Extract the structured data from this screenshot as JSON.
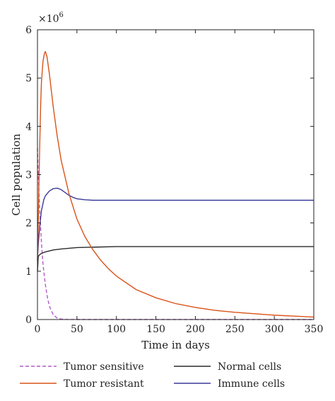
{
  "chart_data": {
    "type": "line",
    "xlabel": "Time in days",
    "ylabel": "Cell population",
    "y_multiplier_label": "×10",
    "y_multiplier_exponent": "6",
    "xlim": [
      0,
      350
    ],
    "ylim": [
      0,
      6
    ],
    "x_ticks": [
      0,
      50,
      100,
      150,
      200,
      250,
      300,
      350
    ],
    "y_ticks": [
      0,
      1,
      2,
      3,
      4,
      5,
      6
    ],
    "grid": false,
    "legend_position": "bottom",
    "series": [
      {
        "name": "Tumor sensitive",
        "color": "#b05cc8",
        "dash": "dashed",
        "x": [
          0,
          1,
          3,
          5,
          7,
          10,
          13,
          16,
          20,
          25,
          30,
          35,
          40,
          50,
          100,
          200,
          350
        ],
        "y": [
          3.55,
          3.0,
          2.2,
          1.6,
          1.15,
          0.72,
          0.42,
          0.24,
          0.1,
          0.03,
          0.01,
          0.003,
          0.001,
          0,
          0,
          0,
          0
        ]
      },
      {
        "name": "Tumor resistant",
        "color": "#d95319",
        "dash": "solid",
        "x": [
          0,
          1,
          2,
          3,
          4,
          5,
          7,
          9,
          10,
          12,
          15,
          20,
          25,
          30,
          40,
          50,
          60,
          70,
          80,
          90,
          100,
          125,
          150,
          175,
          200,
          225,
          250,
          275,
          300,
          325,
          350
        ],
        "y": [
          1.2,
          2.0,
          2.9,
          3.7,
          4.4,
          4.9,
          5.35,
          5.52,
          5.55,
          5.45,
          5.1,
          4.4,
          3.8,
          3.3,
          2.6,
          2.08,
          1.72,
          1.45,
          1.23,
          1.05,
          0.9,
          0.62,
          0.45,
          0.33,
          0.25,
          0.19,
          0.15,
          0.12,
          0.09,
          0.07,
          0.05
        ]
      },
      {
        "name": "Normal cells",
        "color": "#2b2b2b",
        "dash": "solid",
        "x": [
          0,
          1,
          2,
          5,
          10,
          20,
          30,
          50,
          75,
          100,
          150,
          200,
          250,
          300,
          350
        ],
        "y": [
          1.0,
          1.3,
          1.33,
          1.37,
          1.4,
          1.44,
          1.46,
          1.49,
          1.5,
          1.51,
          1.51,
          1.51,
          1.51,
          1.51,
          1.51
        ]
      },
      {
        "name": "Immune cells",
        "color": "#3b3a9a",
        "dash": "solid",
        "x": [
          0,
          1,
          3,
          5,
          8,
          10,
          15,
          20,
          25,
          30,
          35,
          40,
          45,
          50,
          60,
          70,
          80,
          100,
          150,
          200,
          250,
          300,
          350
        ],
        "y": [
          1.25,
          1.55,
          1.95,
          2.25,
          2.48,
          2.56,
          2.66,
          2.71,
          2.72,
          2.69,
          2.63,
          2.57,
          2.53,
          2.5,
          2.48,
          2.47,
          2.47,
          2.47,
          2.47,
          2.47,
          2.47,
          2.47,
          2.47
        ]
      }
    ]
  }
}
